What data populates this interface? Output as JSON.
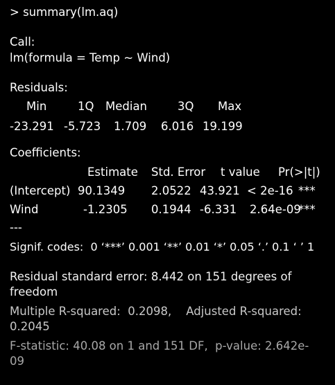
{
  "console": {
    "command": "> summary(lm.aq)",
    "call_header": "Call:",
    "call_formula": "lm(formula = Temp ~ Wind)",
    "residuals_header": "Residuals:",
    "residuals": {
      "headers": [
        "Min",
        "1Q",
        "Median",
        "3Q",
        "Max"
      ],
      "values": [
        "-23.291",
        "-5.723",
        "1.709",
        "6.016",
        "19.199"
      ]
    },
    "coefficients_header": "Coefficients:",
    "coefficients": {
      "headers": [
        "Estimate",
        "Std. Error",
        "t value",
        "Pr(>|t|)"
      ],
      "rows": [
        {
          "term": "(Intercept)",
          "estimate": "90.1349",
          "std_error": "2.0522",
          "t_value": "43.921",
          "p_value": "< 2e-16",
          "stars": "***"
        },
        {
          "term": "Wind",
          "estimate": "-1.2305",
          "std_error": "0.1944",
          "t_value": "-6.331",
          "p_value": "2.64e-09",
          "stars": "***"
        }
      ]
    },
    "separator": "---",
    "signif_codes": "Signif. codes:  0 ‘***’ 0.001 ‘**’ 0.01 ‘*’ 0.05 ‘.’ 0.1 ‘ ’ 1",
    "rse_line1": "Residual standard error: 8.442 on 151 degrees of",
    "rse_line2": "freedom",
    "r2_line1": "Multiple R-squared:  0.2098,    Adjusted R-squared:",
    "r2_line2": "0.2045",
    "f_line1": "F-statistic: 40.08 on 1 and 151 DF,  p-value: 2.642e-",
    "f_line2": "09"
  }
}
